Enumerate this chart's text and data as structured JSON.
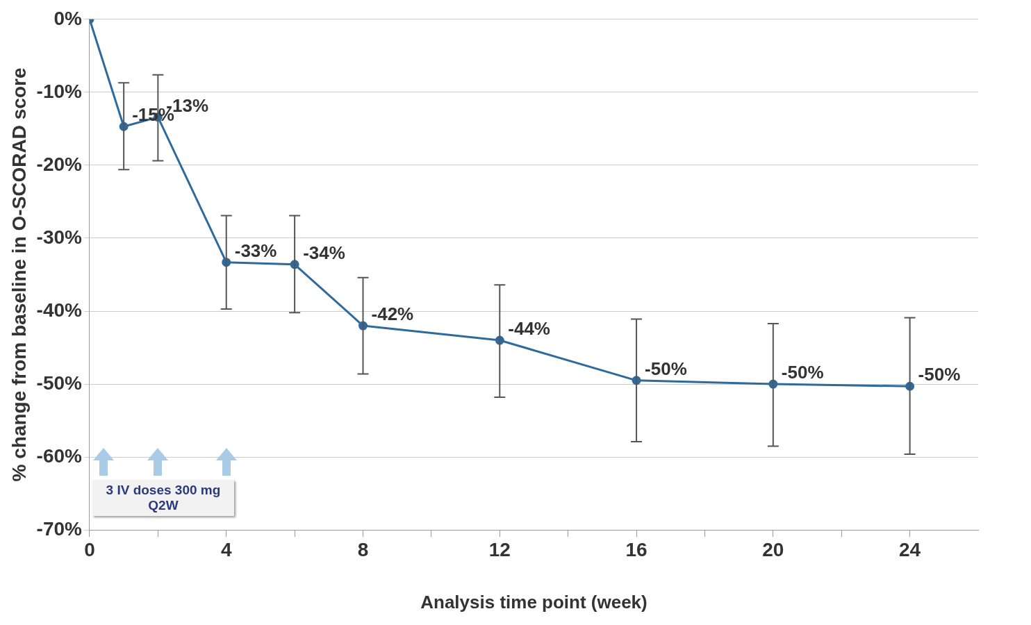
{
  "chart_data": {
    "type": "line",
    "xlabel": "Analysis time point (week)",
    "ylabel": "% change from baseline in O-SCORAD score",
    "x": [
      0,
      1,
      2,
      4,
      6,
      8,
      12,
      16,
      20,
      24
    ],
    "series": [
      {
        "color": "#2f6a9c",
        "values": [
          0,
          -14.7,
          -13.4,
          -33.3,
          -33.6,
          -42,
          -44,
          -49.5,
          -50,
          -50.3
        ],
        "errors": [
          null,
          [
            -20.6,
            -8.7
          ],
          [
            -19.4,
            -7.6
          ],
          [
            -39.7,
            -26.9
          ],
          [
            -40.2,
            -26.9
          ],
          [
            -48.6,
            -35.4
          ],
          [
            -51.8,
            -36.4
          ],
          [
            -57.9,
            -41.1
          ],
          [
            -58.5,
            -41.7
          ],
          [
            -59.6,
            -40.9
          ]
        ],
        "value_labels": [
          null,
          "-15%",
          "-13%",
          "-33%",
          "-34%",
          "-42%",
          "-44%",
          "-50%",
          "-50%",
          "-50%"
        ]
      }
    ],
    "xlim": [
      0,
      26
    ],
    "xticks": [
      0,
      {
        "value": 2,
        "label": null
      },
      4,
      {
        "value": 6,
        "label": null
      },
      8,
      {
        "value": 10,
        "label": null
      },
      12,
      {
        "value": 14,
        "label": null
      },
      16,
      {
        "value": 18,
        "label": null
      },
      20,
      {
        "value": 22,
        "label": null
      },
      24
    ],
    "ylim": [
      -70,
      0
    ],
    "yticks": [
      {
        "value": -70,
        "label": "-70%"
      },
      {
        "value": -60,
        "label": "-60%"
      },
      {
        "value": -50,
        "label": "-50%"
      },
      {
        "value": -40,
        "label": "-40%"
      },
      {
        "value": -30,
        "label": "-30%"
      },
      {
        "value": -20,
        "label": "-20%"
      },
      {
        "value": -10,
        "label": "-10%"
      },
      {
        "value": 0,
        "label": "0%"
      }
    ],
    "grid": "y",
    "marker": "circle",
    "line_style": "solid",
    "legend": false,
    "annotations": [
      "3 IV doses  300 mg Q2W"
    ]
  }
}
